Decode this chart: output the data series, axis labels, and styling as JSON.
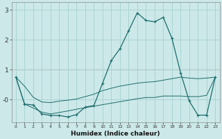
{
  "xlabel": "Humidex (Indice chaleur)",
  "x_ticks": [
    0,
    1,
    2,
    3,
    4,
    5,
    6,
    7,
    8,
    9,
    10,
    11,
    12,
    13,
    14,
    15,
    16,
    17,
    18,
    19,
    20,
    21,
    22,
    23
  ],
  "ylim": [
    -0.75,
    3.25
  ],
  "bg_color": "#cce8e8",
  "grid_color": "#aad4d4",
  "line_color": "#1a6b6b",
  "hline_color": "#cc4444",
  "hline_y": 1.0,
  "main_line": {
    "x": [
      0,
      1,
      2,
      3,
      4,
      5,
      6,
      7,
      8,
      9,
      10,
      11,
      12,
      13,
      14,
      15,
      16,
      17,
      18,
      19,
      20,
      21,
      22,
      23
    ],
    "y": [
      0.75,
      -0.15,
      -0.18,
      -0.48,
      -0.53,
      -0.53,
      -0.58,
      -0.5,
      -0.25,
      -0.2,
      0.55,
      1.3,
      1.7,
      2.3,
      2.9,
      2.65,
      2.6,
      2.75,
      2.05,
      0.9,
      -0.05,
      -0.52,
      -0.52,
      0.75
    ]
  },
  "upper_band": {
    "x": [
      0,
      1,
      2,
      3,
      4,
      5,
      6,
      7,
      8,
      9,
      10,
      11,
      12,
      13,
      14,
      15,
      16,
      17,
      18,
      19,
      20,
      21,
      22,
      23
    ],
    "y": [
      0.75,
      0.45,
      0.08,
      -0.08,
      -0.1,
      -0.05,
      -0.02,
      0.02,
      0.1,
      0.18,
      0.3,
      0.38,
      0.45,
      0.5,
      0.55,
      0.58,
      0.6,
      0.65,
      0.7,
      0.75,
      0.72,
      0.7,
      0.72,
      0.75
    ]
  },
  "lower_band": {
    "x": [
      0,
      1,
      2,
      3,
      4,
      5,
      6,
      7,
      8,
      9,
      10,
      11,
      12,
      13,
      14,
      15,
      16,
      17,
      18,
      19,
      20,
      21,
      22,
      23
    ],
    "y": [
      0.75,
      -0.15,
      -0.28,
      -0.42,
      -0.48,
      -0.43,
      -0.38,
      -0.32,
      -0.27,
      -0.22,
      -0.17,
      -0.12,
      -0.07,
      -0.02,
      0.03,
      0.07,
      0.07,
      0.12,
      0.12,
      0.12,
      0.1,
      0.1,
      0.14,
      0.75
    ]
  }
}
